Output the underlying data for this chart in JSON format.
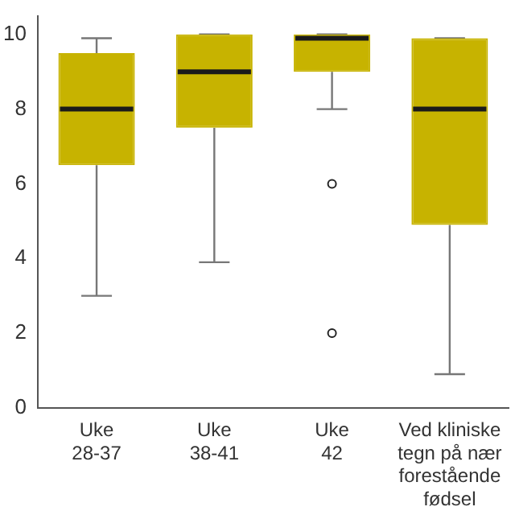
{
  "chart_data": {
    "type": "box",
    "categories": [
      "Uke\n28-37",
      "Uke\n38-41",
      "Uke\n42",
      "Ved kliniske\ntegn på nær\nforestående\nfødsel"
    ],
    "color": "#c7b300",
    "boxes": [
      {
        "low": 3,
        "q1": 6.5,
        "median": 8,
        "q3": 9.5,
        "high": 9.9
      },
      {
        "low": 3.9,
        "q1": 7.5,
        "median": 9,
        "q3": 10,
        "high": 10
      },
      {
        "low": 8,
        "q1": 9,
        "median": 9.9,
        "q3": 10,
        "high": 10,
        "outliers": [
          6,
          2
        ]
      },
      {
        "low": 0.9,
        "q1": 4.9,
        "median": 8,
        "q3": 9.9,
        "high": 9.9
      }
    ],
    "ylim": [
      0,
      10.5
    ],
    "yticks": [
      0,
      2,
      4,
      6,
      8,
      10
    ],
    "grid": false,
    "legend": false
  }
}
